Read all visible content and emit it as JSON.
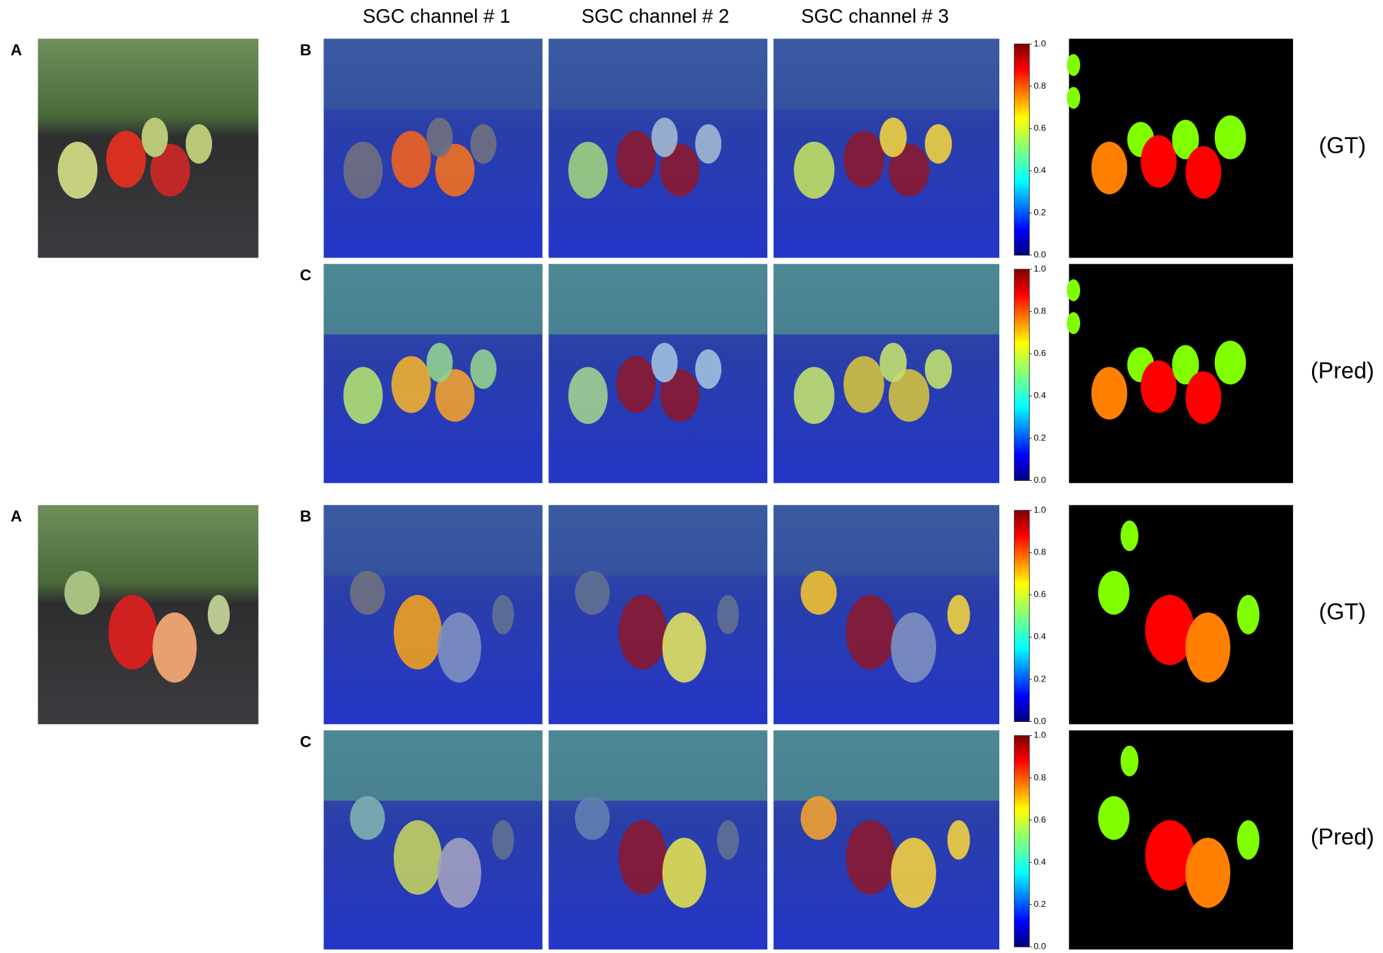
{
  "column_headers": [
    "SGC channel # 1",
    "SGC channel # 2",
    "SGC channel # 3"
  ],
  "groups": [
    {
      "image_label": "A",
      "rows": [
        {
          "label": "B",
          "colorbar_ticks": [
            "0.0",
            "0.2",
            "0.4",
            "0.6",
            "0.8",
            "1.0"
          ],
          "mask_label": "(GT)"
        },
        {
          "label": "C",
          "colorbar_ticks": [
            "0.0",
            "0.2",
            "0.4",
            "0.6",
            "0.8",
            "1.0"
          ],
          "mask_label": "(Pred)"
        }
      ]
    },
    {
      "image_label": "A",
      "rows": [
        {
          "label": "B",
          "colorbar_ticks": [
            "0.0",
            "0.2",
            "0.4",
            "0.6",
            "0.8",
            "1.0"
          ],
          "mask_label": "(GT)"
        },
        {
          "label": "C",
          "colorbar_ticks": [
            "0.0",
            "0.2",
            "0.4",
            "0.6",
            "0.8",
            "1.0"
          ],
          "mask_label": "(Pred)"
        }
      ]
    }
  ]
}
